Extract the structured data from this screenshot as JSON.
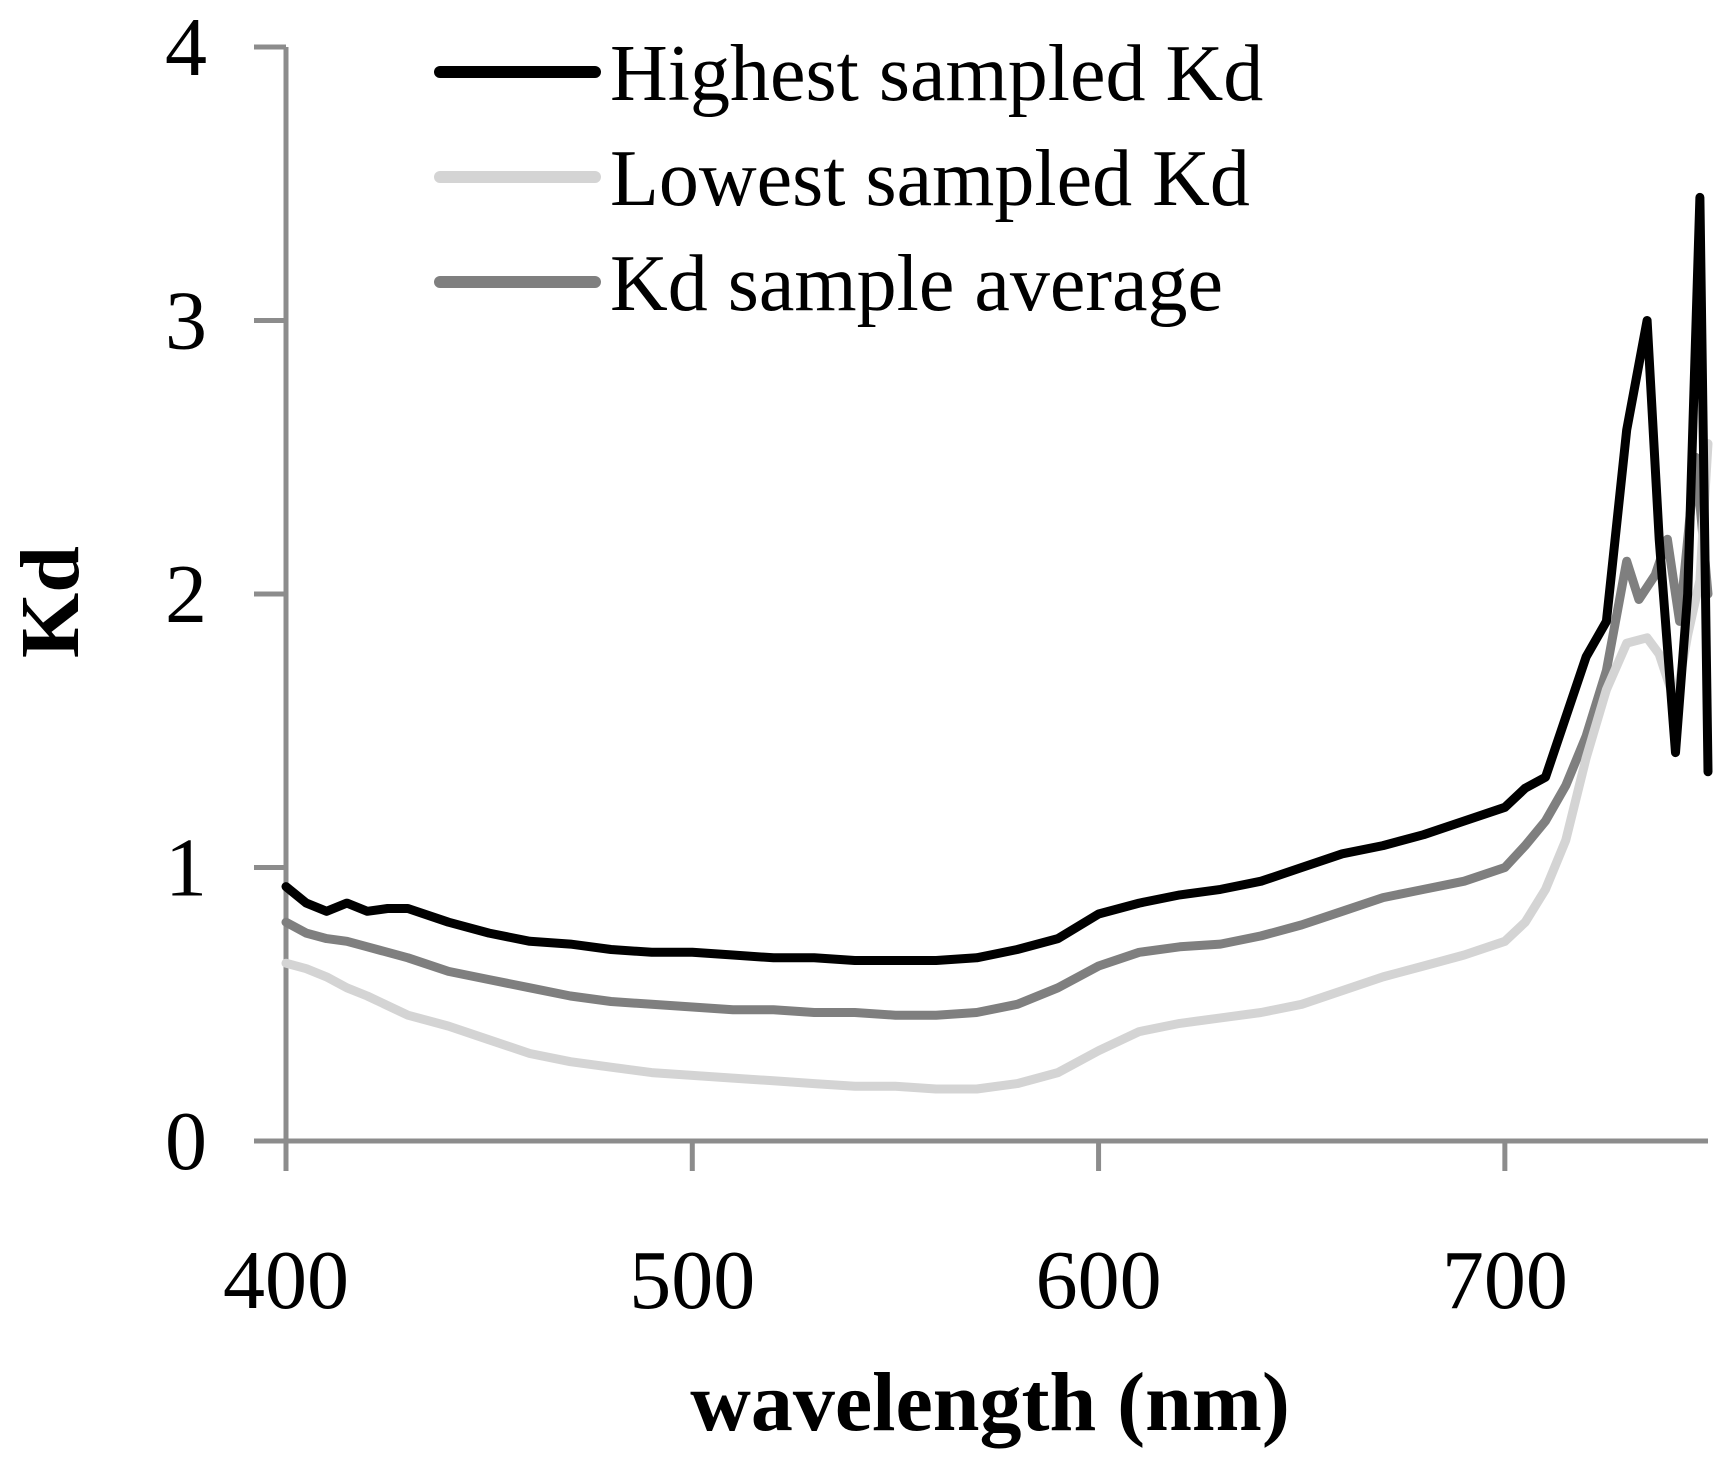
{
  "chart_data": {
    "type": "line",
    "title": "",
    "xlabel": "wavelength (nm)",
    "ylabel": "Kd",
    "xlim": [
      400,
      750
    ],
    "ylim": [
      0,
      4
    ],
    "x_ticks": [
      400,
      500,
      600,
      700
    ],
    "y_ticks": [
      0,
      1,
      2,
      3,
      4
    ],
    "grid": false,
    "legend_position": "top",
    "axis_color": "#8c8c8c",
    "series": [
      {
        "name": "Highest sampled Kd",
        "color": "#000000",
        "x": [
          400,
          405,
          410,
          415,
          420,
          425,
          430,
          440,
          450,
          460,
          470,
          480,
          490,
          500,
          510,
          520,
          530,
          540,
          550,
          560,
          570,
          580,
          590,
          600,
          610,
          620,
          630,
          640,
          650,
          660,
          670,
          680,
          690,
          700,
          705,
          710,
          715,
          720,
          725,
          730,
          735,
          738,
          742,
          745,
          748,
          750
        ],
        "y": [
          0.93,
          0.87,
          0.84,
          0.87,
          0.84,
          0.85,
          0.85,
          0.8,
          0.76,
          0.73,
          0.72,
          0.7,
          0.69,
          0.69,
          0.68,
          0.67,
          0.67,
          0.66,
          0.66,
          0.66,
          0.67,
          0.7,
          0.74,
          0.83,
          0.87,
          0.9,
          0.92,
          0.95,
          1.0,
          1.05,
          1.08,
          1.12,
          1.17,
          1.22,
          1.29,
          1.33,
          1.55,
          1.77,
          1.9,
          2.6,
          3.0,
          2.2,
          1.42,
          2.0,
          3.45,
          1.35
        ]
      },
      {
        "name": "Lowest sampled Kd",
        "color": "#d4d4d4",
        "x": [
          400,
          405,
          410,
          415,
          420,
          430,
          440,
          450,
          460,
          470,
          480,
          490,
          500,
          510,
          520,
          530,
          540,
          550,
          560,
          570,
          580,
          590,
          600,
          610,
          620,
          630,
          640,
          650,
          660,
          670,
          680,
          690,
          700,
          705,
          710,
          715,
          720,
          725,
          730,
          735,
          738,
          742,
          745,
          748,
          750
        ],
        "y": [
          0.65,
          0.63,
          0.6,
          0.56,
          0.53,
          0.46,
          0.42,
          0.37,
          0.32,
          0.29,
          0.27,
          0.25,
          0.24,
          0.23,
          0.22,
          0.21,
          0.2,
          0.2,
          0.19,
          0.19,
          0.21,
          0.25,
          0.33,
          0.4,
          0.43,
          0.45,
          0.47,
          0.5,
          0.55,
          0.6,
          0.64,
          0.68,
          0.73,
          0.8,
          0.92,
          1.1,
          1.4,
          1.65,
          1.82,
          1.84,
          1.78,
          1.6,
          1.85,
          2.05,
          2.55
        ]
      },
      {
        "name": "Kd sample average",
        "color": "#7f7f7f",
        "x": [
          400,
          405,
          410,
          415,
          420,
          430,
          440,
          450,
          460,
          470,
          480,
          490,
          500,
          510,
          520,
          530,
          540,
          550,
          560,
          570,
          580,
          590,
          600,
          610,
          620,
          630,
          640,
          650,
          660,
          670,
          680,
          690,
          700,
          705,
          710,
          715,
          720,
          725,
          730,
          733,
          737,
          740,
          743,
          747,
          750
        ],
        "y": [
          0.8,
          0.76,
          0.74,
          0.73,
          0.71,
          0.67,
          0.62,
          0.59,
          0.56,
          0.53,
          0.51,
          0.5,
          0.49,
          0.48,
          0.48,
          0.47,
          0.47,
          0.46,
          0.46,
          0.47,
          0.5,
          0.56,
          0.64,
          0.69,
          0.71,
          0.72,
          0.75,
          0.79,
          0.84,
          0.89,
          0.92,
          0.95,
          1.0,
          1.08,
          1.17,
          1.3,
          1.48,
          1.72,
          2.12,
          1.98,
          2.07,
          2.2,
          1.9,
          2.5,
          2.0
        ]
      }
    ]
  }
}
